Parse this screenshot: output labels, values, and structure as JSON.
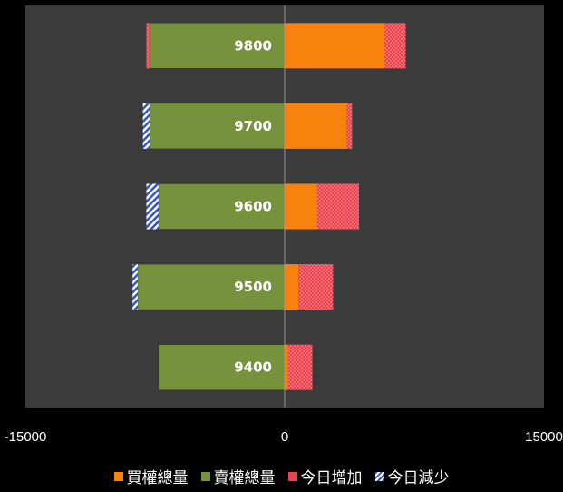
{
  "chart_data": {
    "type": "bar",
    "orientation": "horizontal",
    "stacked": "diverging",
    "categories": [
      "9800",
      "9700",
      "9600",
      "9500",
      "9400"
    ],
    "series": [
      {
        "name": "買權總量",
        "color": "#f7830e",
        "side": "right",
        "values": [
          5800,
          3600,
          1900,
          800,
          200
        ]
      },
      {
        "name": "賣權總量",
        "color": "#76923c",
        "side": "left",
        "values": [
          -7800,
          -7800,
          -7300,
          -8500,
          -7300
        ]
      },
      {
        "name": "今日增加",
        "color": "#e8434f",
        "side": "both",
        "values": [
          [
            -200,
            1200
          ],
          [
            0,
            300
          ],
          [
            0,
            2400
          ],
          [
            0,
            2000
          ],
          [
            0,
            1400
          ]
        ]
      },
      {
        "name": "今日減少",
        "color": "#3355cc",
        "pattern": "hatched",
        "side": "both",
        "values": [
          [
            0,
            0
          ],
          [
            -400,
            0
          ],
          [
            -700,
            0
          ],
          [
            -300,
            0
          ],
          [
            0,
            0
          ]
        ]
      }
    ],
    "xlim": [
      -15000,
      15000
    ],
    "xticks": [
      "-15000",
      "0",
      "15000"
    ],
    "grid": false,
    "legend": "bottom",
    "colors": {
      "background": "#3b3b3b",
      "outer": "#000000",
      "axis": "#9a9a9a"
    }
  }
}
